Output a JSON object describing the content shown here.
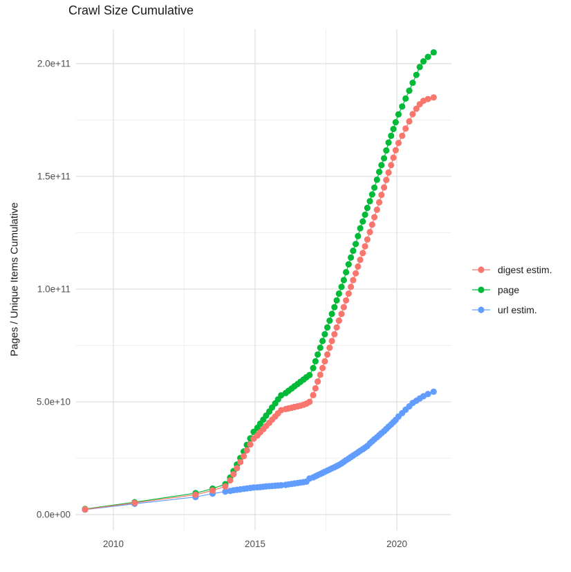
{
  "title": "Crawl Size Cumulative",
  "y_axis": {
    "label": "Pages / Unique Items Cumulative",
    "tick_labels": [
      "0.0e+00",
      "5.0e+10",
      "1.0e+11",
      "1.5e+11",
      "2.0e+11"
    ],
    "tick_values_e9": [
      0,
      50,
      100,
      150,
      200
    ],
    "minor_values_e9": [
      25,
      75,
      125,
      175
    ]
  },
  "x_axis": {
    "tick_labels": [
      "2010",
      "2015",
      "2020"
    ],
    "tick_values": [
      2010,
      2015,
      2020
    ],
    "minor_values": [
      2012.5,
      2017.5
    ]
  },
  "legend": {
    "position": "right",
    "items": [
      {
        "label": "digest estim.",
        "color": "#F8766D"
      },
      {
        "label": "page",
        "color": "#00BA38"
      },
      {
        "label": "url estim.",
        "color": "#619CFF"
      }
    ]
  },
  "colors": {
    "major_grid": "#DEDEDE",
    "minor_grid": "#EFEFEF",
    "axis_text": "#4D4D4D",
    "title_text": "#1a1a1a",
    "background": "#ffffff"
  },
  "chart_data": {
    "type": "line",
    "title": "Crawl Size Cumulative",
    "xlabel": "",
    "ylabel": "Pages / Unique Items Cumulative",
    "x_range": [
      2008.7,
      2022.0
    ],
    "y_range": [
      0,
      216000000000.0
    ],
    "grid": true,
    "legend_position": "right",
    "values_unit": "items cumulative, stored in billions (1e9)",
    "series": [
      {
        "name": "digest estim.",
        "color": "#F8766D",
        "points": [
          [
            2009.0,
            2.3
          ],
          [
            2010.75,
            5.2
          ],
          [
            2012.9,
            8.8
          ],
          [
            2013.5,
            10.7
          ],
          [
            2013.95,
            12.5
          ],
          [
            2014.12,
            15.2
          ],
          [
            2014.24,
            17.9
          ],
          [
            2014.36,
            20.6
          ],
          [
            2014.48,
            23.3
          ],
          [
            2014.6,
            25.9
          ],
          [
            2014.71,
            28.5
          ],
          [
            2014.83,
            31.1
          ],
          [
            2014.95,
            33.7
          ],
          [
            2015.08,
            35.1
          ],
          [
            2015.18,
            36.5
          ],
          [
            2015.29,
            37.9
          ],
          [
            2015.39,
            39.3
          ],
          [
            2015.5,
            40.7
          ],
          [
            2015.6,
            42.1
          ],
          [
            2015.71,
            43.5
          ],
          [
            2015.81,
            44.9
          ],
          [
            2015.92,
            46.3
          ],
          [
            2016.08,
            46.8
          ],
          [
            2016.18,
            47.1
          ],
          [
            2016.29,
            47.4
          ],
          [
            2016.39,
            47.7
          ],
          [
            2016.5,
            48.0
          ],
          [
            2016.6,
            48.3
          ],
          [
            2016.71,
            48.7
          ],
          [
            2016.81,
            49.2
          ],
          [
            2016.92,
            50.0
          ],
          [
            2017.05,
            53
          ],
          [
            2017.13,
            56
          ],
          [
            2017.21,
            59
          ],
          [
            2017.3,
            62
          ],
          [
            2017.38,
            65
          ],
          [
            2017.46,
            68
          ],
          [
            2017.55,
            71
          ],
          [
            2017.63,
            74
          ],
          [
            2017.71,
            77
          ],
          [
            2017.8,
            80
          ],
          [
            2017.88,
            83
          ],
          [
            2017.96,
            86
          ],
          [
            2018.05,
            89
          ],
          [
            2018.13,
            92
          ],
          [
            2018.21,
            95
          ],
          [
            2018.3,
            98
          ],
          [
            2018.38,
            101
          ],
          [
            2018.46,
            104
          ],
          [
            2018.55,
            107
          ],
          [
            2018.63,
            110
          ],
          [
            2018.71,
            113
          ],
          [
            2018.8,
            116
          ],
          [
            2018.88,
            119
          ],
          [
            2018.96,
            122
          ],
          [
            2019.05,
            125.3
          ],
          [
            2019.13,
            128.6
          ],
          [
            2019.21,
            131.9
          ],
          [
            2019.3,
            135.2
          ],
          [
            2019.38,
            138.5
          ],
          [
            2019.46,
            141.8
          ],
          [
            2019.55,
            145.1
          ],
          [
            2019.63,
            148.4
          ],
          [
            2019.71,
            151.7
          ],
          [
            2019.8,
            155
          ],
          [
            2019.88,
            158.3
          ],
          [
            2019.96,
            161.6
          ],
          [
            2020.06,
            164.8
          ],
          [
            2020.19,
            168
          ],
          [
            2020.31,
            171.2
          ],
          [
            2020.44,
            174.4
          ],
          [
            2020.56,
            177.6
          ],
          [
            2020.69,
            180
          ],
          [
            2020.81,
            182
          ],
          [
            2020.94,
            183.5
          ],
          [
            2021.1,
            184.3
          ],
          [
            2021.3,
            185
          ]
        ]
      },
      {
        "name": "page",
        "color": "#00BA38",
        "points": [
          [
            2009.0,
            2.5
          ],
          [
            2010.75,
            5.5
          ],
          [
            2012.9,
            9.5
          ],
          [
            2013.5,
            11.5
          ],
          [
            2013.95,
            13.5
          ],
          [
            2014.12,
            16.4
          ],
          [
            2014.24,
            19.3
          ],
          [
            2014.36,
            22.2
          ],
          [
            2014.48,
            25.1
          ],
          [
            2014.6,
            28.0
          ],
          [
            2014.71,
            30.9
          ],
          [
            2014.83,
            33.8
          ],
          [
            2014.95,
            36.7
          ],
          [
            2015.08,
            38.5
          ],
          [
            2015.18,
            40.3
          ],
          [
            2015.29,
            42.1
          ],
          [
            2015.39,
            43.9
          ],
          [
            2015.5,
            45.7
          ],
          [
            2015.6,
            47.5
          ],
          [
            2015.71,
            49.3
          ],
          [
            2015.81,
            51.1
          ],
          [
            2015.92,
            52.9
          ],
          [
            2016.08,
            53.9
          ],
          [
            2016.18,
            54.9
          ],
          [
            2016.29,
            55.9
          ],
          [
            2016.39,
            56.9
          ],
          [
            2016.5,
            57.9
          ],
          [
            2016.6,
            58.9
          ],
          [
            2016.71,
            59.9
          ],
          [
            2016.81,
            60.9
          ],
          [
            2016.92,
            61.9
          ],
          [
            2017.05,
            65
          ],
          [
            2017.13,
            68
          ],
          [
            2017.21,
            71
          ],
          [
            2017.3,
            74
          ],
          [
            2017.38,
            77
          ],
          [
            2017.46,
            80
          ],
          [
            2017.55,
            83
          ],
          [
            2017.63,
            86
          ],
          [
            2017.71,
            89
          ],
          [
            2017.8,
            92
          ],
          [
            2017.88,
            95
          ],
          [
            2017.96,
            98
          ],
          [
            2018.05,
            101
          ],
          [
            2018.13,
            104
          ],
          [
            2018.21,
            107.5
          ],
          [
            2018.3,
            111
          ],
          [
            2018.38,
            114
          ],
          [
            2018.46,
            117
          ],
          [
            2018.55,
            120
          ],
          [
            2018.63,
            123.5
          ],
          [
            2018.71,
            127
          ],
          [
            2018.8,
            130
          ],
          [
            2018.88,
            133
          ],
          [
            2018.96,
            136
          ],
          [
            2019.05,
            139
          ],
          [
            2019.13,
            142
          ],
          [
            2019.21,
            145
          ],
          [
            2019.3,
            148.5
          ],
          [
            2019.38,
            152
          ],
          [
            2019.46,
            155
          ],
          [
            2019.55,
            158
          ],
          [
            2019.63,
            161.5
          ],
          [
            2019.71,
            165
          ],
          [
            2019.8,
            168
          ],
          [
            2019.88,
            171
          ],
          [
            2019.96,
            174
          ],
          [
            2020.06,
            177.5
          ],
          [
            2020.19,
            181
          ],
          [
            2020.31,
            184.5
          ],
          [
            2020.44,
            188
          ],
          [
            2020.56,
            191.5
          ],
          [
            2020.69,
            195
          ],
          [
            2020.81,
            198.5
          ],
          [
            2020.94,
            201
          ],
          [
            2021.1,
            203
          ],
          [
            2021.3,
            205
          ]
        ]
      },
      {
        "name": "url estim.",
        "color": "#619CFF",
        "points": [
          [
            2009.0,
            2.2
          ],
          [
            2010.75,
            4.8
          ],
          [
            2012.9,
            7.8
          ],
          [
            2013.5,
            9.3
          ],
          [
            2013.95,
            10.2
          ],
          [
            2014.12,
            10.5
          ],
          [
            2014.24,
            10.8
          ],
          [
            2014.36,
            11.0
          ],
          [
            2014.48,
            11.2
          ],
          [
            2014.6,
            11.4
          ],
          [
            2014.71,
            11.6
          ],
          [
            2014.83,
            11.8
          ],
          [
            2014.95,
            12.0
          ],
          [
            2015.08,
            12.1
          ],
          [
            2015.18,
            12.2
          ],
          [
            2015.29,
            12.35
          ],
          [
            2015.39,
            12.5
          ],
          [
            2015.5,
            12.6
          ],
          [
            2015.6,
            12.7
          ],
          [
            2015.71,
            12.8
          ],
          [
            2015.81,
            12.9
          ],
          [
            2015.92,
            13.0
          ],
          [
            2016.08,
            13.2
          ],
          [
            2016.18,
            13.4
          ],
          [
            2016.29,
            13.6
          ],
          [
            2016.39,
            13.8
          ],
          [
            2016.5,
            14.0
          ],
          [
            2016.6,
            14.2
          ],
          [
            2016.71,
            14.4
          ],
          [
            2016.81,
            14.6
          ],
          [
            2016.92,
            16.0
          ],
          [
            2017.05,
            16.5
          ],
          [
            2017.13,
            17.0
          ],
          [
            2017.21,
            17.5
          ],
          [
            2017.3,
            18.0
          ],
          [
            2017.38,
            18.5
          ],
          [
            2017.46,
            19.0
          ],
          [
            2017.55,
            19.5
          ],
          [
            2017.63,
            20.0
          ],
          [
            2017.71,
            20.5
          ],
          [
            2017.8,
            21.0
          ],
          [
            2017.88,
            21.5
          ],
          [
            2017.96,
            22.0
          ],
          [
            2018.05,
            22.7
          ],
          [
            2018.13,
            23.4
          ],
          [
            2018.21,
            24.1
          ],
          [
            2018.3,
            24.8
          ],
          [
            2018.38,
            25.5
          ],
          [
            2018.46,
            26.2
          ],
          [
            2018.55,
            26.9
          ],
          [
            2018.63,
            27.6
          ],
          [
            2018.71,
            28.3
          ],
          [
            2018.8,
            29.0
          ],
          [
            2018.88,
            29.7
          ],
          [
            2018.96,
            30.4
          ],
          [
            2019.05,
            31.6
          ],
          [
            2019.13,
            32.5
          ],
          [
            2019.21,
            33.4
          ],
          [
            2019.3,
            34.3
          ],
          [
            2019.38,
            35.2
          ],
          [
            2019.46,
            36.1
          ],
          [
            2019.55,
            37.0
          ],
          [
            2019.63,
            38.0
          ],
          [
            2019.71,
            39.0
          ],
          [
            2019.8,
            40.0
          ],
          [
            2019.88,
            41.0
          ],
          [
            2019.96,
            42.0
          ],
          [
            2020.06,
            43.5
          ],
          [
            2020.19,
            45.0
          ],
          [
            2020.31,
            46.5
          ],
          [
            2020.44,
            48.0
          ],
          [
            2020.56,
            49.5
          ],
          [
            2020.69,
            50.5
          ],
          [
            2020.81,
            51.5
          ],
          [
            2020.94,
            52.5
          ],
          [
            2021.1,
            53.5
          ],
          [
            2021.3,
            54.5
          ]
        ]
      }
    ]
  }
}
